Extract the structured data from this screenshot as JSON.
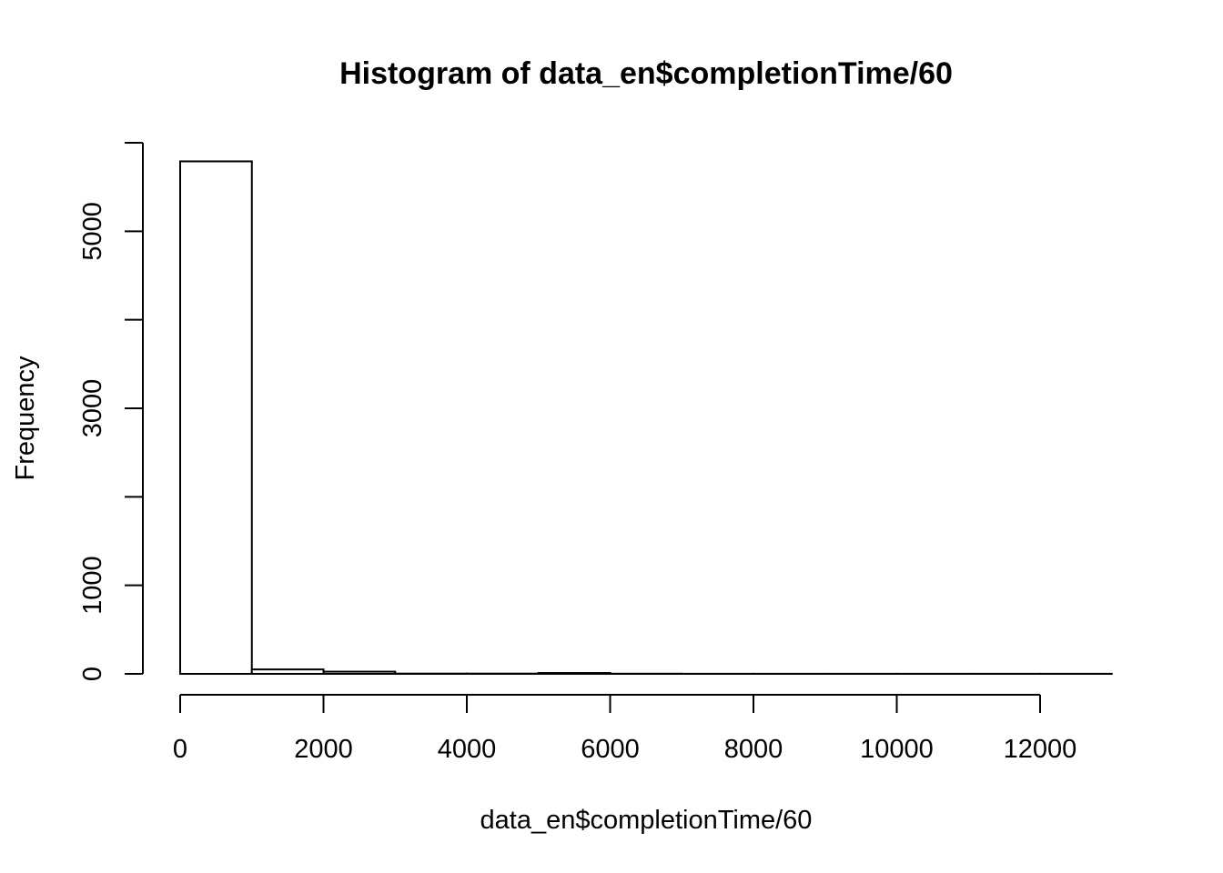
{
  "chart_data": {
    "type": "bar",
    "title": "Histogram of data_en$completionTime/60",
    "xlabel": "data_en$completionTime/60",
    "ylabel": "Frequency",
    "bins": [
      {
        "from": 0,
        "to": 1000,
        "count": 5790
      },
      {
        "from": 1000,
        "to": 2000,
        "count": 50
      },
      {
        "from": 2000,
        "to": 3000,
        "count": 25
      },
      {
        "from": 3000,
        "to": 4000,
        "count": 3
      },
      {
        "from": 4000,
        "to": 5000,
        "count": 3
      },
      {
        "from": 5000,
        "to": 6000,
        "count": 10
      },
      {
        "from": 6000,
        "to": 7000,
        "count": 2
      },
      {
        "from": 7000,
        "to": 8000,
        "count": 1
      },
      {
        "from": 8000,
        "to": 9000,
        "count": 1
      },
      {
        "from": 9000,
        "to": 10000,
        "count": 1
      },
      {
        "from": 10000,
        "to": 11000,
        "count": 1
      },
      {
        "from": 11000,
        "to": 12000,
        "count": 1
      },
      {
        "from": 12000,
        "to": 13000,
        "count": 1
      }
    ],
    "x_ticks": [
      0,
      2000,
      4000,
      6000,
      8000,
      10000,
      12000
    ],
    "y_ticks": [
      0,
      1000,
      2000,
      3000,
      4000,
      5000,
      6000
    ],
    "y_tick_labels": [
      "0",
      "1000",
      "",
      "3000",
      "",
      "5000",
      ""
    ],
    "xlim": [
      0,
      13000
    ],
    "ylim": [
      0,
      6000
    ],
    "grid": false,
    "legend": "none"
  }
}
